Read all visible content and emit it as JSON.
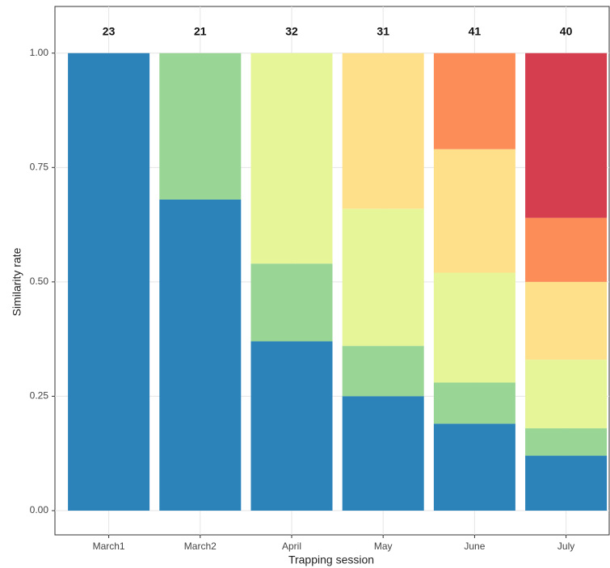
{
  "chart_data": {
    "type": "stacked_bar",
    "categories": [
      "March1",
      "March2",
      "April",
      "May",
      "June",
      "July"
    ],
    "counts": [
      23,
      21,
      32,
      31,
      41,
      40
    ],
    "series": [
      {
        "color": "#2b83ba",
        "values": [
          1.0,
          0.68,
          0.37,
          0.25,
          0.19,
          0.12
        ]
      },
      {
        "color": "#99d594",
        "values": [
          null,
          0.32,
          0.17,
          0.11,
          0.09,
          0.06
        ]
      },
      {
        "color": "#e6f598",
        "values": [
          null,
          null,
          0.46,
          0.3,
          0.24,
          0.15
        ]
      },
      {
        "color": "#fee08b",
        "values": [
          null,
          null,
          null,
          0.34,
          0.27,
          0.17
        ]
      },
      {
        "color": "#fc8d59",
        "values": [
          null,
          null,
          null,
          null,
          0.21,
          0.14
        ]
      },
      {
        "color": "#d53e4f",
        "values": [
          null,
          null,
          null,
          null,
          null,
          0.36
        ]
      }
    ],
    "y_label": "Similarity rate",
    "x_label": "Trapping session",
    "ylim": [
      -0.053,
      1.102
    ],
    "yticks": [
      {
        "value": 0,
        "label": "0.00"
      },
      {
        "value": 0.25,
        "label": "0.25"
      },
      {
        "value": 0.5,
        "label": "0.50"
      },
      {
        "value": 0.75,
        "label": "0.75"
      },
      {
        "value": 1,
        "label": "1.00"
      }
    ],
    "grid": true
  }
}
